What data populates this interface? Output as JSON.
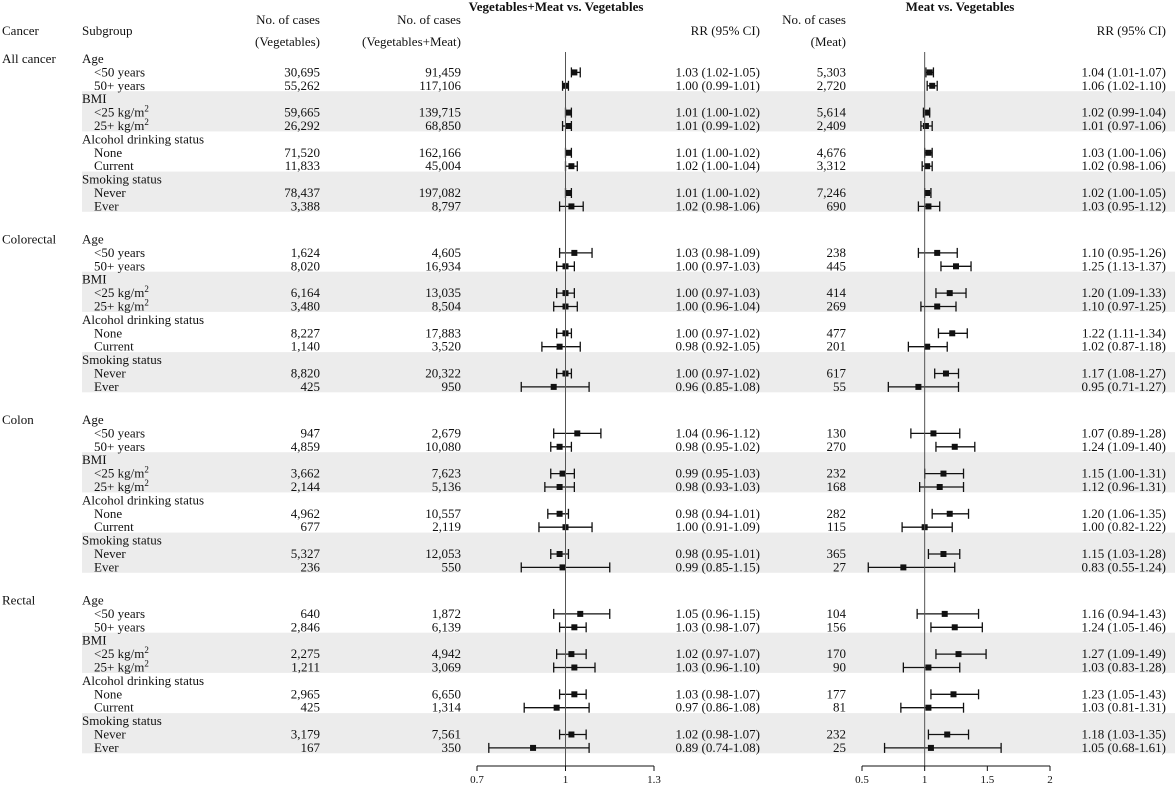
{
  "headers": {
    "cancer": "Cancer",
    "subgroup": "Subgroup",
    "cases_veg_1": "No. of cases",
    "cases_veg_2": "(Vegetables)",
    "cases_vm_1": "No. of cases",
    "cases_vm_2": "(Vegetables+Meat)",
    "panel1_title": "Vegetables+Meat vs. Vegetables",
    "panel1_rr": "RR (95% CI)",
    "cases_meat_1": "No. of cases",
    "cases_meat_2": "(Meat)",
    "panel2_title": "Meat vs. Vegetables",
    "panel2_rr": "RR (95% CI)"
  },
  "chart_data": {
    "type": "forest",
    "panels": [
      {
        "title": "Vegetables+Meat vs. Vegetables",
        "xlim": [
          0.7,
          1.3
        ],
        "ticks": [
          "0.7",
          "1",
          "1.3"
        ],
        "ref": 1.0
      },
      {
        "title": "Meat vs. Vegetables",
        "xlim": [
          0.5,
          2.0
        ],
        "ticks": [
          "0.5",
          "1",
          "1.5",
          "2"
        ],
        "ref": 1.0
      }
    ],
    "groups": [
      {
        "cancer": "All cancer",
        "subgroups": [
          {
            "name": "Age",
            "rows": [
              {
                "label": "<50 years",
                "veg": "30,695",
                "vm": "91,459",
                "p1": [
                  1.03,
                  1.02,
                  1.05
                ],
                "p1_text": "1.03 (1.02-1.05)",
                "meat": "5,303",
                "p2": [
                  1.04,
                  1.01,
                  1.07
                ],
                "p2_text": "1.04 (1.01-1.07)"
              },
              {
                "label": "50+ years",
                "veg": "55,262",
                "vm": "117,106",
                "p1": [
                  1.0,
                  0.99,
                  1.01
                ],
                "p1_text": "1.00 (0.99-1.01)",
                "meat": "2,720",
                "p2": [
                  1.06,
                  1.02,
                  1.1
                ],
                "p2_text": "1.06 (1.02-1.10)"
              }
            ]
          },
          {
            "name": "BMI",
            "rows": [
              {
                "label": "<25 kg/m",
                "sup": "2",
                "veg": "59,665",
                "vm": "139,715",
                "p1": [
                  1.01,
                  1.0,
                  1.02
                ],
                "p1_text": "1.01 (1.00-1.02)",
                "meat": "5,614",
                "p2": [
                  1.02,
                  0.99,
                  1.04
                ],
                "p2_text": "1.02 (0.99-1.04)"
              },
              {
                "label": "25+ kg/m",
                "sup": "2",
                "veg": "26,292",
                "vm": "68,850",
                "p1": [
                  1.01,
                  0.99,
                  1.02
                ],
                "p1_text": "1.01 (0.99-1.02)",
                "meat": "2,409",
                "p2": [
                  1.01,
                  0.97,
                  1.06
                ],
                "p2_text": "1.01 (0.97-1.06)"
              }
            ]
          },
          {
            "name": "Alcohol drinking status",
            "rows": [
              {
                "label": "None",
                "veg": "71,520",
                "vm": "162,166",
                "p1": [
                  1.01,
                  1.0,
                  1.02
                ],
                "p1_text": "1.01 (1.00-1.02)",
                "meat": "4,676",
                "p2": [
                  1.03,
                  1.0,
                  1.06
                ],
                "p2_text": "1.03 (1.00-1.06)"
              },
              {
                "label": "Current",
                "veg": "11,833",
                "vm": "45,004",
                "p1": [
                  1.02,
                  1.0,
                  1.04
                ],
                "p1_text": "1.02 (1.00-1.04)",
                "meat": "3,312",
                "p2": [
                  1.02,
                  0.98,
                  1.06
                ],
                "p2_text": "1.02 (0.98-1.06)"
              }
            ]
          },
          {
            "name": "Smoking status",
            "rows": [
              {
                "label": "Never",
                "veg": "78,437",
                "vm": "197,082",
                "p1": [
                  1.01,
                  1.0,
                  1.02
                ],
                "p1_text": "1.01 (1.00-1.02)",
                "meat": "7,246",
                "p2": [
                  1.02,
                  1.0,
                  1.05
                ],
                "p2_text": "1.02 (1.00-1.05)"
              },
              {
                "label": "Ever",
                "veg": "3,388",
                "vm": "8,797",
                "p1": [
                  1.02,
                  0.98,
                  1.06
                ],
                "p1_text": "1.02 (0.98-1.06)",
                "meat": "690",
                "p2": [
                  1.03,
                  0.95,
                  1.12
                ],
                "p2_text": "1.03 (0.95-1.12)"
              }
            ]
          }
        ]
      },
      {
        "cancer": "Colorectal",
        "subgroups": [
          {
            "name": "Age",
            "rows": [
              {
                "label": "<50 years",
                "veg": "1,624",
                "vm": "4,605",
                "p1": [
                  1.03,
                  0.98,
                  1.09
                ],
                "p1_text": "1.03 (0.98-1.09)",
                "meat": "238",
                "p2": [
                  1.1,
                  0.95,
                  1.26
                ],
                "p2_text": "1.10 (0.95-1.26)"
              },
              {
                "label": "50+ years",
                "veg": "8,020",
                "vm": "16,934",
                "p1": [
                  1.0,
                  0.97,
                  1.03
                ],
                "p1_text": "1.00 (0.97-1.03)",
                "meat": "445",
                "p2": [
                  1.25,
                  1.13,
                  1.37
                ],
                "p2_text": "1.25 (1.13-1.37)"
              }
            ]
          },
          {
            "name": "BMI",
            "rows": [
              {
                "label": "<25 kg/m",
                "sup": "2",
                "veg": "6,164",
                "vm": "13,035",
                "p1": [
                  1.0,
                  0.97,
                  1.03
                ],
                "p1_text": "1.00 (0.97-1.03)",
                "meat": "414",
                "p2": [
                  1.2,
                  1.09,
                  1.33
                ],
                "p2_text": "1.20 (1.09-1.33)"
              },
              {
                "label": "25+ kg/m",
                "sup": "2",
                "veg": "3,480",
                "vm": "8,504",
                "p1": [
                  1.0,
                  0.96,
                  1.04
                ],
                "p1_text": "1.00 (0.96-1.04)",
                "meat": "269",
                "p2": [
                  1.1,
                  0.97,
                  1.25
                ],
                "p2_text": "1.10 (0.97-1.25)"
              }
            ]
          },
          {
            "name": "Alcohol drinking status",
            "rows": [
              {
                "label": "None",
                "veg": "8,227",
                "vm": "17,883",
                "p1": [
                  1.0,
                  0.97,
                  1.02
                ],
                "p1_text": "1.00 (0.97-1.02)",
                "meat": "477",
                "p2": [
                  1.22,
                  1.11,
                  1.34
                ],
                "p2_text": "1.22 (1.11-1.34)"
              },
              {
                "label": "Current",
                "veg": "1,140",
                "vm": "3,520",
                "p1": [
                  0.98,
                  0.92,
                  1.05
                ],
                "p1_text": "0.98 (0.92-1.05)",
                "meat": "201",
                "p2": [
                  1.02,
                  0.87,
                  1.18
                ],
                "p2_text": "1.02 (0.87-1.18)"
              }
            ]
          },
          {
            "name": "Smoking status",
            "rows": [
              {
                "label": "Never",
                "veg": "8,820",
                "vm": "20,322",
                "p1": [
                  1.0,
                  0.97,
                  1.02
                ],
                "p1_text": "1.00 (0.97-1.02)",
                "meat": "617",
                "p2": [
                  1.17,
                  1.08,
                  1.27
                ],
                "p2_text": "1.17 (1.08-1.27)"
              },
              {
                "label": "Ever",
                "veg": "425",
                "vm": "950",
                "p1": [
                  0.96,
                  0.85,
                  1.08
                ],
                "p1_text": "0.96 (0.85-1.08)",
                "meat": "55",
                "p2": [
                  0.95,
                  0.71,
                  1.27
                ],
                "p2_text": "0.95 (0.71-1.27)"
              }
            ]
          }
        ]
      },
      {
        "cancer": "Colon",
        "subgroups": [
          {
            "name": "Age",
            "rows": [
              {
                "label": "<50 years",
                "veg": "947",
                "vm": "2,679",
                "p1": [
                  1.04,
                  0.96,
                  1.12
                ],
                "p1_text": "1.04 (0.96-1.12)",
                "meat": "130",
                "p2": [
                  1.07,
                  0.89,
                  1.28
                ],
                "p2_text": "1.07 (0.89-1.28)"
              },
              {
                "label": "50+ years",
                "veg": "4,859",
                "vm": "10,080",
                "p1": [
                  0.98,
                  0.95,
                  1.02
                ],
                "p1_text": "0.98 (0.95-1.02)",
                "meat": "270",
                "p2": [
                  1.24,
                  1.09,
                  1.4
                ],
                "p2_text": "1.24 (1.09-1.40)"
              }
            ]
          },
          {
            "name": "BMI",
            "rows": [
              {
                "label": "<25 kg/m",
                "sup": "2",
                "veg": "3,662",
                "vm": "7,623",
                "p1": [
                  0.99,
                  0.95,
                  1.03
                ],
                "p1_text": "0.99 (0.95-1.03)",
                "meat": "232",
                "p2": [
                  1.15,
                  1.0,
                  1.31
                ],
                "p2_text": "1.15 (1.00-1.31)"
              },
              {
                "label": "25+ kg/m",
                "sup": "2",
                "veg": "2,144",
                "vm": "5,136",
                "p1": [
                  0.98,
                  0.93,
                  1.03
                ],
                "p1_text": "0.98 (0.93-1.03)",
                "meat": "168",
                "p2": [
                  1.12,
                  0.96,
                  1.31
                ],
                "p2_text": "1.12 (0.96-1.31)"
              }
            ]
          },
          {
            "name": "Alcohol drinking status",
            "rows": [
              {
                "label": "None",
                "veg": "4,962",
                "vm": "10,557",
                "p1": [
                  0.98,
                  0.94,
                  1.01
                ],
                "p1_text": "0.98 (0.94-1.01)",
                "meat": "282",
                "p2": [
                  1.2,
                  1.06,
                  1.35
                ],
                "p2_text": "1.20 (1.06-1.35)"
              },
              {
                "label": "Current",
                "veg": "677",
                "vm": "2,119",
                "p1": [
                  1.0,
                  0.91,
                  1.09
                ],
                "p1_text": "1.00 (0.91-1.09)",
                "meat": "115",
                "p2": [
                  1.0,
                  0.82,
                  1.22
                ],
                "p2_text": "1.00 (0.82-1.22)"
              }
            ]
          },
          {
            "name": "Smoking status",
            "rows": [
              {
                "label": "Never",
                "veg": "5,327",
                "vm": "12,053",
                "p1": [
                  0.98,
                  0.95,
                  1.01
                ],
                "p1_text": "0.98 (0.95-1.01)",
                "meat": "365",
                "p2": [
                  1.15,
                  1.03,
                  1.28
                ],
                "p2_text": "1.15 (1.03-1.28)"
              },
              {
                "label": "Ever",
                "veg": "236",
                "vm": "550",
                "p1": [
                  0.99,
                  0.85,
                  1.15
                ],
                "p1_text": "0.99 (0.85-1.15)",
                "meat": "27",
                "p2": [
                  0.83,
                  0.55,
                  1.24
                ],
                "p2_text": "0.83 (0.55-1.24)"
              }
            ]
          }
        ]
      },
      {
        "cancer": "Rectal",
        "subgroups": [
          {
            "name": "Age",
            "rows": [
              {
                "label": "<50 years",
                "veg": "640",
                "vm": "1,872",
                "p1": [
                  1.05,
                  0.96,
                  1.15
                ],
                "p1_text": "1.05 (0.96-1.15)",
                "meat": "104",
                "p2": [
                  1.16,
                  0.94,
                  1.43
                ],
                "p2_text": "1.16 (0.94-1.43)"
              },
              {
                "label": "50+ years",
                "veg": "2,846",
                "vm": "6,139",
                "p1": [
                  1.03,
                  0.98,
                  1.07
                ],
                "p1_text": "1.03 (0.98-1.07)",
                "meat": "156",
                "p2": [
                  1.24,
                  1.05,
                  1.46
                ],
                "p2_text": "1.24 (1.05-1.46)"
              }
            ]
          },
          {
            "name": "BMI",
            "rows": [
              {
                "label": "<25 kg/m",
                "sup": "2",
                "veg": "2,275",
                "vm": "4,942",
                "p1": [
                  1.02,
                  0.97,
                  1.07
                ],
                "p1_text": "1.02 (0.97-1.07)",
                "meat": "170",
                "p2": [
                  1.27,
                  1.09,
                  1.49
                ],
                "p2_text": "1.27 (1.09-1.49)"
              },
              {
                "label": "25+ kg/m",
                "sup": "2",
                "veg": "1,211",
                "vm": "3,069",
                "p1": [
                  1.03,
                  0.96,
                  1.1
                ],
                "p1_text": "1.03 (0.96-1.10)",
                "meat": "90",
                "p2": [
                  1.03,
                  0.83,
                  1.28
                ],
                "p2_text": "1.03 (0.83-1.28)"
              }
            ]
          },
          {
            "name": "Alcohol drinking status",
            "rows": [
              {
                "label": "None",
                "veg": "2,965",
                "vm": "6,650",
                "p1": [
                  1.03,
                  0.98,
                  1.07
                ],
                "p1_text": "1.03 (0.98-1.07)",
                "meat": "177",
                "p2": [
                  1.23,
                  1.05,
                  1.43
                ],
                "p2_text": "1.23 (1.05-1.43)"
              },
              {
                "label": "Current",
                "veg": "425",
                "vm": "1,314",
                "p1": [
                  0.97,
                  0.86,
                  1.08
                ],
                "p1_text": "0.97 (0.86-1.08)",
                "meat": "81",
                "p2": [
                  1.03,
                  0.81,
                  1.31
                ],
                "p2_text": "1.03 (0.81-1.31)"
              }
            ]
          },
          {
            "name": "Smoking status",
            "rows": [
              {
                "label": "Never",
                "veg": "3,179",
                "vm": "7,561",
                "p1": [
                  1.02,
                  0.98,
                  1.07
                ],
                "p1_text": "1.02 (0.98-1.07)",
                "meat": "232",
                "p2": [
                  1.18,
                  1.03,
                  1.35
                ],
                "p2_text": "1.18 (1.03-1.35)"
              },
              {
                "label": "Ever",
                "veg": "167",
                "vm": "350",
                "p1": [
                  0.89,
                  0.74,
                  1.08
                ],
                "p1_text": "0.89 (0.74-1.08)",
                "meat": "25",
                "p2": [
                  1.05,
                  0.68,
                  1.61
                ],
                "p2_text": "1.05 (0.68-1.61)"
              }
            ]
          }
        ]
      }
    ]
  }
}
